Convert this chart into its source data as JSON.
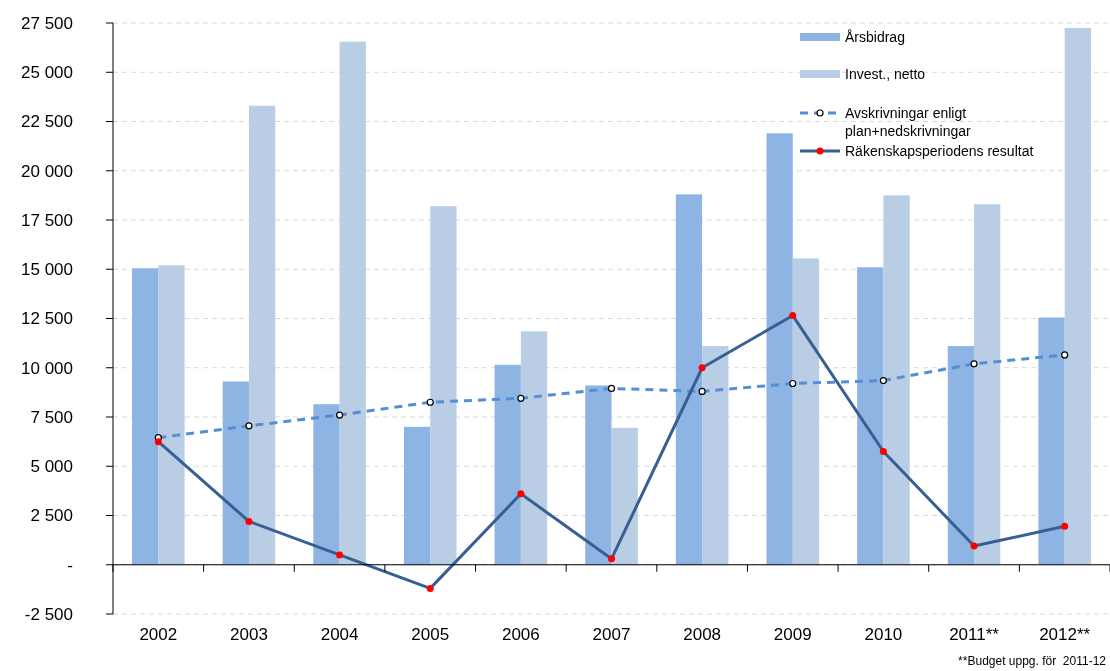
{
  "chart_data": {
    "type": "bar",
    "categories": [
      "2002",
      "2003",
      "2004",
      "2005",
      "2006",
      "2007",
      "2008",
      "2009",
      "2010",
      "2011**",
      "2012**"
    ],
    "series": [
      {
        "name": "Årsbidrag",
        "color": "#8eb4e3",
        "values": [
          15050,
          9300,
          8150,
          7000,
          10150,
          9100,
          18800,
          21900,
          15100,
          11100,
          12550
        ]
      },
      {
        "name": "Invest., netto",
        "color": "#b9cde5",
        "values": [
          15200,
          23300,
          26550,
          18200,
          11850,
          6950,
          11100,
          15550,
          18750,
          18300,
          27250
        ]
      },
      {
        "name": "Avskrivningar enligt plan+nedskrivningar",
        "type": "line",
        "color": "#558ed5",
        "line_style": "dashed",
        "marker": "circle",
        "values": [
          6450,
          7050,
          7600,
          8250,
          8450,
          8950,
          8800,
          9200,
          9350,
          10200,
          10650
        ]
      },
      {
        "name": "Räkenskapsperiodens resultat",
        "type": "line",
        "color": "#376092",
        "line_style": "solid",
        "marker": "circle",
        "values": [
          6250,
          2200,
          500,
          -1200,
          3600,
          300,
          10000,
          12650,
          5750,
          950,
          1950
        ]
      }
    ],
    "ylim": [
      -2500,
      27500
    ],
    "yticks": [
      {
        "value": -2500,
        "label": "-2 500"
      },
      {
        "value": 0,
        "label": "-"
      },
      {
        "value": 2500,
        "label": "2 500"
      },
      {
        "value": 5000,
        "label": "5 000"
      },
      {
        "value": 7500,
        "label": "7 500"
      },
      {
        "value": 10000,
        "label": "10 000"
      },
      {
        "value": 12500,
        "label": "12 500"
      },
      {
        "value": 15000,
        "label": "15 000"
      },
      {
        "value": 17500,
        "label": "17 500"
      },
      {
        "value": 20000,
        "label": "20 000"
      },
      {
        "value": 22500,
        "label": "22 500"
      },
      {
        "value": 25000,
        "label": "25 000"
      },
      {
        "value": 27500,
        "label": "27 500"
      }
    ],
    "grid": "y",
    "legend": "top right",
    "annotations": [
      "**Budget uppg. för  2011-12"
    ]
  }
}
